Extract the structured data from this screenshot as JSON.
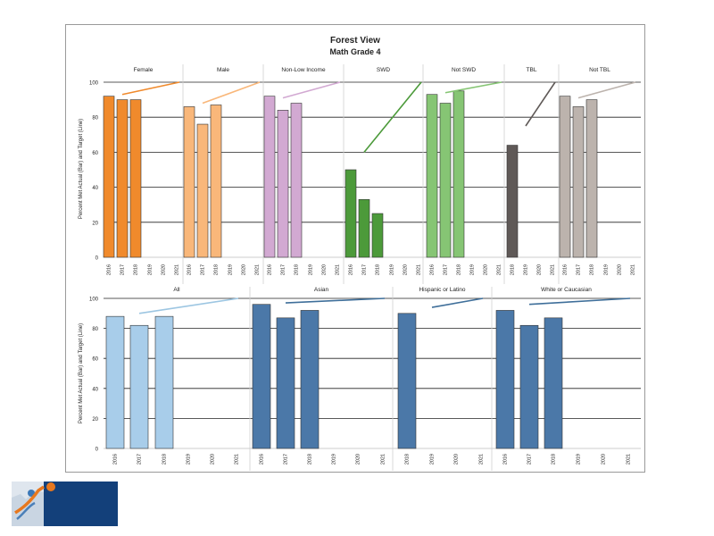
{
  "chart_data": [
    {
      "type": "bar",
      "title": "Forest View",
      "subtitle": "Math Grade 4",
      "ylabel": "Percent Met Actual (Bar) and Target (Line)",
      "ylim": [
        0,
        100
      ],
      "yticks": [
        0,
        20,
        40,
        60,
        80,
        100
      ],
      "panels": [
        {
          "label": "Female",
          "color": "#f08a2c",
          "x": [
            "2016",
            "2017",
            "2018",
            "2019",
            "2020",
            "2021"
          ],
          "values": [
            92,
            90,
            90,
            null,
            null,
            null
          ],
          "target": {
            "from": "2017",
            "to": "2021",
            "y": [
              93,
              100
            ]
          }
        },
        {
          "label": "Male",
          "color": "#f9b77a",
          "x": [
            "2016",
            "2017",
            "2018",
            "2019",
            "2020",
            "2021"
          ],
          "values": [
            86,
            76,
            87,
            null,
            null,
            null
          ],
          "target": {
            "from": "2017",
            "to": "2021",
            "y": [
              88,
              100
            ]
          }
        },
        {
          "label": "Non-Low Income",
          "color": "#d2a9d2",
          "x": [
            "2016",
            "2017",
            "2018",
            "2019",
            "2020",
            "2021"
          ],
          "values": [
            92,
            84,
            88,
            null,
            null,
            null
          ],
          "target": {
            "from": "2017",
            "to": "2021",
            "y": [
              91,
              100
            ]
          }
        },
        {
          "label": "SWD",
          "color": "#4c9a3a",
          "x": [
            "2016",
            "2017",
            "2018",
            "2019",
            "2020",
            "2021"
          ],
          "values": [
            50,
            33,
            25,
            null,
            null,
            null
          ],
          "target": {
            "from": "2017",
            "to": "2021",
            "y": [
              60,
              100
            ]
          }
        },
        {
          "label": "Not SWD",
          "color": "#86c574",
          "x": [
            "2016",
            "2017",
            "2018",
            "2019",
            "2020",
            "2021"
          ],
          "values": [
            93,
            88,
            95,
            null,
            null,
            null
          ],
          "target": {
            "from": "2017",
            "to": "2021",
            "y": [
              94,
              100
            ]
          }
        },
        {
          "label": "TBL",
          "color": "#5f5957",
          "x": [
            "2018",
            "2019",
            "2020",
            "2021"
          ],
          "values": [
            64,
            null,
            null,
            null
          ],
          "target": {
            "from": "2019",
            "to": "2021",
            "y": [
              75,
              100
            ]
          }
        },
        {
          "label": "Not TBL",
          "color": "#bcb3ad",
          "x": [
            "2016",
            "2017",
            "2018",
            "2019",
            "2020",
            "2021"
          ],
          "values": [
            92,
            86,
            90,
            null,
            null,
            null
          ],
          "target": {
            "from": "2017",
            "to": "2021",
            "y": [
              91,
              100
            ]
          }
        }
      ]
    },
    {
      "type": "bar",
      "ylabel": "Percent Met Actual (Bar) and Target (Line)",
      "ylim": [
        0,
        100
      ],
      "yticks": [
        0,
        20,
        40,
        60,
        80,
        100
      ],
      "panels": [
        {
          "label": "All",
          "color": "#a8cdea",
          "line_color": "#9dc6e2",
          "x": [
            "2016",
            "2017",
            "2018",
            "2019",
            "2020",
            "2021"
          ],
          "values": [
            88,
            82,
            88,
            null,
            null,
            null
          ],
          "target": {
            "from": "2017",
            "to": "2021",
            "y": [
              90,
              100
            ]
          }
        },
        {
          "label": "Asian",
          "color": "#4b78a8",
          "line_color": "#3f6f9a",
          "x": [
            "2016",
            "2017",
            "2018",
            "2019",
            "2020",
            "2021"
          ],
          "values": [
            96,
            87,
            92,
            null,
            null,
            null
          ],
          "target": {
            "from": "2017",
            "to": "2021",
            "y": [
              97,
              100
            ]
          }
        },
        {
          "label": "Hispanic or Latino",
          "color": "#4b78a8",
          "line_color": "#3f6f9a",
          "x": [
            "2018",
            "2019",
            "2020",
            "2021"
          ],
          "values": [
            90,
            null,
            null,
            null
          ],
          "target": {
            "from": "2019",
            "to": "2021",
            "y": [
              94,
              100
            ]
          }
        },
        {
          "label": "White or Caucasian",
          "color": "#4b78a8",
          "line_color": "#3f6f9a",
          "x": [
            "2016",
            "2017",
            "2018",
            "2019",
            "2020",
            "2021"
          ],
          "values": [
            92,
            82,
            87,
            null,
            null,
            null
          ],
          "target": {
            "from": "2017",
            "to": "2021",
            "y": [
              96,
              100
            ]
          }
        }
      ]
    }
  ],
  "logo": {
    "name": "organization-logo"
  }
}
